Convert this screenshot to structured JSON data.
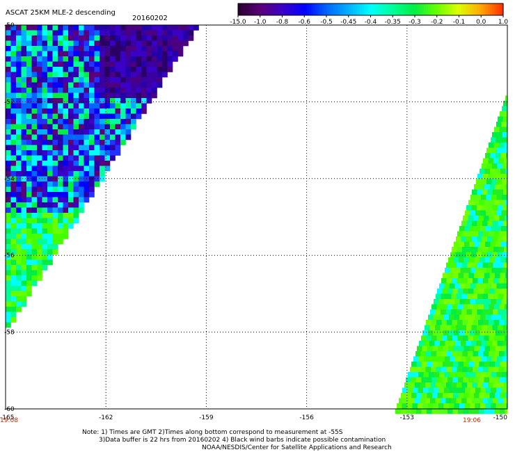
{
  "title": {
    "main": "ASCAT 25KM MLE-2 descending",
    "date": "20160202"
  },
  "colorbar": {
    "labels": [
      "-15.0",
      "-1.0",
      "-0.8",
      "-0.6",
      "-0.5",
      "-0.45",
      "-0.4",
      "-0.35",
      "-0.3",
      "-0.2",
      "-0.1",
      "0.0",
      "1.0"
    ],
    "colors": [
      "#2a0033",
      "#5a007a",
      "#3a00c8",
      "#0000ff",
      "#0066ff",
      "#00b0ff",
      "#00ffff",
      "#00ff99",
      "#00ee44",
      "#66ff00",
      "#ddff00",
      "#ffaa00",
      "#ff3300"
    ]
  },
  "map": {
    "lon_ticks": [
      "-165",
      "-162",
      "-159",
      "-156",
      "-153",
      "-150"
    ],
    "lat_ticks": [
      "-50",
      "-52",
      "-54",
      "-56",
      "-58",
      "-60"
    ],
    "times": {
      "left": "19:08",
      "right": "19:06"
    },
    "grid": true
  },
  "notes": [
    "Note: 1) Times are GMT 2)Times along bottom correspond to measurement at -55S",
    "3)Data buffer is 22 hrs from 20160202 4) Black wind barbs indicate possible contamination",
    "NOAA/NESDIS/Center for Satellite Applications and Research"
  ]
}
